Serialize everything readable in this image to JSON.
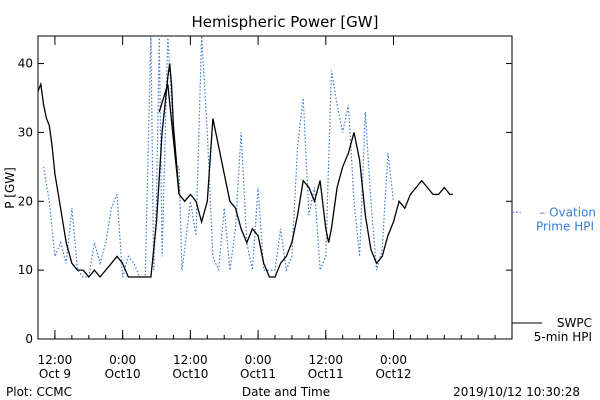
{
  "chart_data": {
    "type": "line",
    "title": "Hemispheric Power [GW]",
    "ylabel": "P [GW]",
    "xlabel": "Date and Time",
    "ylim": [
      0,
      44
    ],
    "xlim": [
      "2019-10-09 09:00",
      "2019-10-12 21:00"
    ],
    "yticks": [
      0,
      10,
      20,
      30,
      40
    ],
    "xticks": [
      {
        "x": "2019-10-09 12:00",
        "line1": "12:00",
        "line2": "Oct 9"
      },
      {
        "x": "2019-10-10 00:00",
        "line1": "0:00",
        "line2": "Oct10"
      },
      {
        "x": "2019-10-10 12:00",
        "line1": "12:00",
        "line2": "Oct10"
      },
      {
        "x": "2019-10-11 00:00",
        "line1": "0:00",
        "line2": "Oct11"
      },
      {
        "x": "2019-10-11 12:00",
        "line1": "12:00",
        "line2": "Oct11"
      },
      {
        "x": "2019-10-12 00:00",
        "line1": "0:00",
        "line2": "Oct12"
      }
    ],
    "grid": false,
    "legend_placement": "right",
    "series": [
      {
        "name": "SWPC 5-min HPI",
        "legend_lines": [
          "SWPC",
          "5-min HPI"
        ],
        "color": "#000000",
        "style": "solid",
        "points": [
          [
            "2019-10-09 09:00",
            36
          ],
          [
            "2019-10-09 09:30",
            37
          ],
          [
            "2019-10-09 10:00",
            34
          ],
          [
            "2019-10-09 10:30",
            32
          ],
          [
            "2019-10-09 11:00",
            31
          ],
          [
            "2019-10-09 11:30",
            28
          ],
          [
            "2019-10-09 12:00",
            24
          ],
          [
            "2019-10-09 13:00",
            19
          ],
          [
            "2019-10-09 14:00",
            14
          ],
          [
            "2019-10-09 15:00",
            11
          ],
          [
            "2019-10-09 16:00",
            10
          ],
          [
            "2019-10-09 17:00",
            10
          ],
          [
            "2019-10-09 18:00",
            9
          ],
          [
            "2019-10-09 19:00",
            10
          ],
          [
            "2019-10-09 20:00",
            9
          ],
          [
            "2019-10-09 21:00",
            10
          ],
          [
            "2019-10-09 22:00",
            11
          ],
          [
            "2019-10-09 23:00",
            12
          ],
          [
            "2019-10-10 00:00",
            11
          ],
          [
            "2019-10-10 01:00",
            9
          ],
          [
            "2019-10-10 02:00",
            9
          ],
          [
            "2019-10-10 03:00",
            9
          ],
          [
            "2019-10-10 04:00",
            9
          ],
          [
            "2019-10-10 05:00",
            9
          ],
          [
            "2019-10-10 06:00",
            17
          ],
          [
            "2019-10-10 07:00",
            30
          ],
          [
            "2019-10-10 07:30",
            34
          ],
          [
            "2019-10-10 08:00",
            38
          ],
          [
            "2019-10-10 08:20",
            40
          ],
          [
            "2019-10-10 08:40",
            37
          ],
          [
            "2019-10-10 09:00",
            31
          ],
          [
            "2019-10-10 10:00",
            21
          ],
          [
            "2019-10-10 11:00",
            20
          ],
          [
            "2019-10-10 12:00",
            21
          ],
          [
            "2019-10-10 13:00",
            20
          ],
          [
            "2019-10-10 14:00",
            17
          ],
          [
            "2019-10-10 15:00",
            20
          ],
          [
            "2019-10-10 16:00",
            32
          ],
          [
            "2019-10-10 17:00",
            28
          ],
          [
            "2019-10-10 18:00",
            24
          ],
          [
            "2019-10-10 19:00",
            20
          ],
          [
            "2019-10-10 20:00",
            19
          ],
          [
            "2019-10-10 21:00",
            16
          ],
          [
            "2019-10-10 22:00",
            14
          ],
          [
            "2019-10-10 23:00",
            16
          ],
          [
            "2019-10-11 00:00",
            15
          ],
          [
            "2019-10-11 01:00",
            11
          ],
          [
            "2019-10-11 02:00",
            9
          ],
          [
            "2019-10-11 03:00",
            9
          ],
          [
            "2019-10-11 04:00",
            11
          ],
          [
            "2019-10-11 05:00",
            12
          ],
          [
            "2019-10-11 06:00",
            14
          ],
          [
            "2019-10-11 07:00",
            18
          ],
          [
            "2019-10-11 08:00",
            23
          ],
          [
            "2019-10-11 09:00",
            22
          ],
          [
            "2019-10-11 10:00",
            20
          ],
          [
            "2019-10-11 11:00",
            23
          ],
          [
            "2019-10-11 12:00",
            16
          ],
          [
            "2019-10-11 12:30",
            14
          ],
          [
            "2019-10-11 13:00",
            16
          ],
          [
            "2019-10-11 14:00",
            22
          ],
          [
            "2019-10-11 15:00",
            25
          ],
          [
            "2019-10-11 16:00",
            27
          ],
          [
            "2019-10-11 17:00",
            30
          ],
          [
            "2019-10-11 18:00",
            26
          ],
          [
            "2019-10-11 19:00",
            18
          ],
          [
            "2019-10-11 20:00",
            13
          ],
          [
            "2019-10-11 21:00",
            11
          ],
          [
            "2019-10-11 22:00",
            12
          ],
          [
            "2019-10-11 23:00",
            15
          ],
          [
            "2019-10-12 00:00",
            17
          ],
          [
            "2019-10-12 01:00",
            20
          ],
          [
            "2019-10-12 02:00",
            19
          ],
          [
            "2019-10-12 03:00",
            21
          ],
          [
            "2019-10-12 04:00",
            22
          ],
          [
            "2019-10-12 05:00",
            23
          ],
          [
            "2019-10-12 06:00",
            22
          ],
          [
            "2019-10-12 07:00",
            21
          ],
          [
            "2019-10-12 08:00",
            21
          ],
          [
            "2019-10-12 09:00",
            22
          ],
          [
            "2019-10-12 10:00",
            21
          ],
          [
            "2019-10-12 10:30",
            21
          ]
        ],
        "extra_segments": [
          [
            [
              "2019-10-10 06:30",
              33
            ],
            [
              "2019-10-10 08:00",
              37
            ],
            [
              "2019-10-10 09:00",
              29
            ],
            [
              "2019-10-10 10:00",
              21
            ]
          ]
        ]
      },
      {
        "name": "Ovation Prime HPI",
        "legend_lines": [
          "Ovation",
          "Prime HPI"
        ],
        "color": "#3a7bd5",
        "style": "dotted",
        "points": [
          [
            "2019-10-09 10:00",
            25
          ],
          [
            "2019-10-09 11:00",
            20
          ],
          [
            "2019-10-09 12:00",
            12
          ],
          [
            "2019-10-09 13:00",
            14
          ],
          [
            "2019-10-09 14:00",
            11
          ],
          [
            "2019-10-09 15:00",
            19
          ],
          [
            "2019-10-09 16:00",
            10
          ],
          [
            "2019-10-09 17:00",
            9
          ],
          [
            "2019-10-09 18:00",
            9
          ],
          [
            "2019-10-09 19:00",
            14
          ],
          [
            "2019-10-09 20:00",
            11
          ],
          [
            "2019-10-09 21:00",
            14
          ],
          [
            "2019-10-09 22:00",
            19
          ],
          [
            "2019-10-09 23:00",
            21
          ],
          [
            "2019-10-10 00:00",
            9
          ],
          [
            "2019-10-10 01:00",
            12
          ],
          [
            "2019-10-10 02:00",
            11
          ],
          [
            "2019-10-10 03:00",
            9
          ],
          [
            "2019-10-10 04:00",
            9
          ],
          [
            "2019-10-10 05:00",
            44
          ],
          [
            "2019-10-10 05:30",
            10
          ],
          [
            "2019-10-10 06:00",
            20
          ],
          [
            "2019-10-10 06:30",
            44
          ],
          [
            "2019-10-10 07:00",
            12
          ],
          [
            "2019-10-10 08:00",
            44
          ],
          [
            "2019-10-10 09:00",
            30
          ],
          [
            "2019-10-10 09:30",
            25
          ],
          [
            "2019-10-10 10:00",
            25
          ],
          [
            "2019-10-10 10:30",
            10
          ],
          [
            "2019-10-10 11:00",
            13
          ],
          [
            "2019-10-10 12:00",
            20
          ],
          [
            "2019-10-10 13:00",
            15
          ],
          [
            "2019-10-10 14:00",
            44
          ],
          [
            "2019-10-10 15:00",
            30
          ],
          [
            "2019-10-10 16:00",
            12
          ],
          [
            "2019-10-10 17:00",
            10
          ],
          [
            "2019-10-10 18:00",
            19
          ],
          [
            "2019-10-10 19:00",
            10
          ],
          [
            "2019-10-10 20:00",
            16
          ],
          [
            "2019-10-10 21:00",
            30
          ],
          [
            "2019-10-10 22:00",
            14
          ],
          [
            "2019-10-10 23:00",
            10
          ],
          [
            "2019-10-11 00:00",
            22
          ],
          [
            "2019-10-11 01:00",
            10
          ],
          [
            "2019-10-11 02:00",
            10
          ],
          [
            "2019-10-11 03:00",
            10
          ],
          [
            "2019-10-11 04:00",
            16
          ],
          [
            "2019-10-11 05:00",
            10
          ],
          [
            "2019-10-11 06:00",
            12
          ],
          [
            "2019-10-11 07:00",
            28
          ],
          [
            "2019-10-11 08:00",
            35
          ],
          [
            "2019-10-11 09:00",
            18
          ],
          [
            "2019-10-11 10:00",
            22
          ],
          [
            "2019-10-11 11:00",
            10
          ],
          [
            "2019-10-11 12:00",
            12
          ],
          [
            "2019-10-11 13:00",
            39
          ],
          [
            "2019-10-11 14:00",
            34
          ],
          [
            "2019-10-11 15:00",
            30
          ],
          [
            "2019-10-11 16:00",
            34
          ],
          [
            "2019-10-11 17:00",
            20
          ],
          [
            "2019-10-11 18:00",
            12
          ],
          [
            "2019-10-11 19:00",
            33
          ],
          [
            "2019-10-11 20:00",
            20
          ],
          [
            "2019-10-11 21:00",
            10
          ],
          [
            "2019-10-11 22:00",
            13
          ],
          [
            "2019-10-11 23:00",
            27
          ],
          [
            "2019-10-12 00:00",
            20
          ]
        ]
      }
    ]
  },
  "footer": {
    "left": "Plot: CCMC",
    "right": "2019/10/12 10:30:28"
  }
}
